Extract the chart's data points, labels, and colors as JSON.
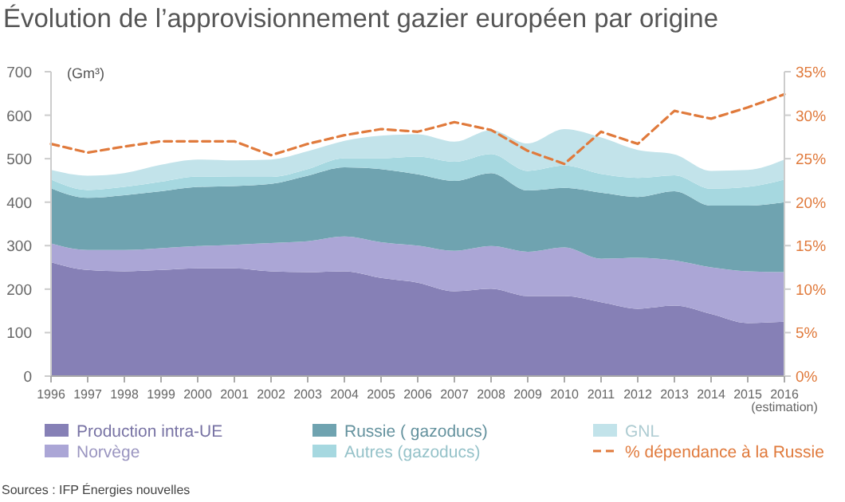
{
  "chart_data": {
    "type": "area",
    "stacked": true,
    "title": "Évolution de l’approvisionnement gazier européen par origine",
    "ylabel": "(Gm³)",
    "categories": [
      "1996",
      "1997",
      "1998",
      "1999",
      "2000",
      "2001",
      "2002",
      "2003",
      "2004",
      "2005",
      "2006",
      "2007",
      "2008",
      "2009",
      "2010",
      "2011",
      "2012",
      "2013",
      "2014",
      "2015",
      "2016\n(estimation)"
    ],
    "series": [
      {
        "name": "Production intra-UE",
        "color": "#8680b6",
        "values": [
          262,
          244,
          241,
          244,
          248,
          248,
          241,
          239,
          241,
          226,
          215,
          195,
          201,
          184,
          184,
          170,
          155,
          162,
          143,
          122,
          125
        ]
      },
      {
        "name": "Norvège",
        "color": "#aba6d6",
        "values": [
          43,
          46,
          49,
          50,
          51,
          54,
          65,
          71,
          80,
          82,
          85,
          93,
          98,
          102,
          112,
          100,
          117,
          104,
          107,
          119,
          114
        ]
      },
      {
        "name": "Russie ( gazoducs)",
        "color": "#6fa3b0",
        "values": [
          127,
          120,
          126,
          131,
          136,
          135,
          136,
          151,
          159,
          168,
          164,
          161,
          168,
          141,
          137,
          152,
          140,
          159,
          142,
          151,
          161
        ]
      },
      {
        "name": "Autres (gazoducs)",
        "color": "#a6d8e0",
        "values": [
          20,
          18,
          19,
          22,
          24,
          21,
          16,
          15,
          21,
          25,
          41,
          44,
          44,
          45,
          51,
          43,
          44,
          37,
          39,
          43,
          52
        ]
      },
      {
        "name": "GNL",
        "color": "#c2e3ea",
        "values": [
          22,
          33,
          32,
          39,
          39,
          38,
          40,
          41,
          40,
          52,
          51,
          46,
          55,
          63,
          84,
          84,
          64,
          48,
          41,
          39,
          46
        ]
      },
      {
        "name": "% dépendance à la Russie",
        "type": "line",
        "axis": "y2",
        "color": "#e07a3c",
        "line_style": "dashed",
        "values": [
          26.7,
          25.7,
          26.4,
          27.0,
          27.0,
          27.0,
          25.4,
          26.7,
          27.7,
          28.4,
          28.1,
          29.2,
          28.3,
          25.9,
          24.4,
          28.1,
          26.7,
          30.5,
          29.6,
          30.9,
          32.4
        ]
      }
    ],
    "ylim": [
      0,
      700
    ],
    "yticks": [
      0,
      100,
      200,
      300,
      400,
      500,
      600,
      700
    ],
    "y2lim": [
      0,
      35
    ],
    "y2ticks": [
      {
        "value": 0,
        "label": "0%"
      },
      {
        "value": 5,
        "label": "5%"
      },
      {
        "value": 10,
        "label": "10%"
      },
      {
        "value": 15,
        "label": "15%"
      },
      {
        "value": 20,
        "label": "20%"
      },
      {
        "value": 25,
        "label": "25%"
      },
      {
        "value": 30,
        "label": "30%"
      },
      {
        "value": 35,
        "label": "35%"
      }
    ],
    "grid": false,
    "legend": "bottom",
    "annotations": [
      "Sources : IFP Énergies nouvelles"
    ]
  }
}
